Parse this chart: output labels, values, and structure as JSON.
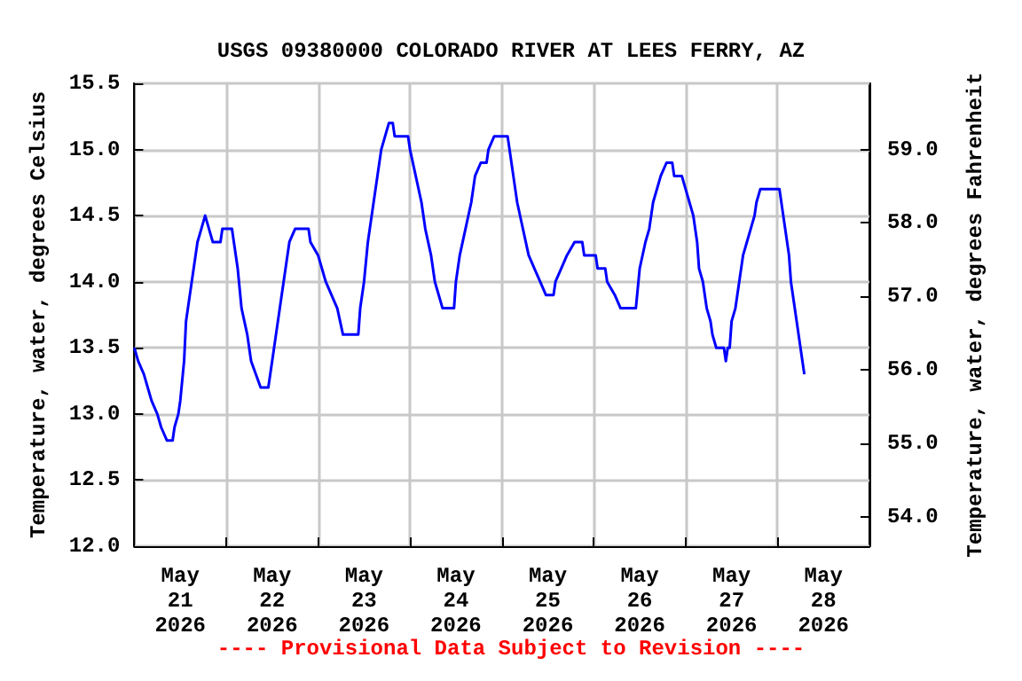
{
  "chart_data": {
    "type": "line",
    "title": "USGS 09380000 COLORADO RIVER AT LEES FERRY, AZ",
    "ylabel": "Temperature, water, degrees Celsius",
    "y2label": "Temperature, water, degrees Fahrenheit",
    "annotations": [
      "---- Provisional Data Subject to Revision ----"
    ],
    "xlim": [
      "2026-05-21T00:00",
      "2026-05-29T00:00"
    ],
    "xticks": [
      {
        "value": "2026-05-22T00:00",
        "label": null
      },
      {
        "value": "2026-05-23T00:00",
        "label": null
      },
      {
        "value": "2026-05-24T00:00",
        "label": null
      },
      {
        "value": "2026-05-25T00:00",
        "label": null
      },
      {
        "value": "2026-05-26T00:00",
        "label": null
      },
      {
        "value": "2026-05-27T00:00",
        "label": null
      },
      {
        "value": "2026-05-28T00:00",
        "label": null
      },
      {
        "value": "2026-05-21T12:00",
        "label": "May\n21\n2026"
      },
      {
        "value": "2026-05-22T12:00",
        "label": "May\n22\n2026"
      },
      {
        "value": "2026-05-23T12:00",
        "label": "May\n23\n2026"
      },
      {
        "value": "2026-05-24T12:00",
        "label": "May\n24\n2026"
      },
      {
        "value": "2026-05-25T12:00",
        "label": "May\n25\n2026"
      },
      {
        "value": "2026-05-26T12:00",
        "label": "May\n26\n2026"
      },
      {
        "value": "2026-05-27T12:00",
        "label": "May\n27\n2026"
      },
      {
        "value": "2026-05-28T12:00",
        "label": "May\n28\n2026"
      }
    ],
    "ylim": [
      12.0,
      15.5
    ],
    "yticks": [
      {
        "value": 12,
        "label": "12.0"
      },
      {
        "value": 12.5,
        "label": "12.5"
      },
      {
        "value": 13,
        "label": "13.0"
      },
      {
        "value": 13.5,
        "label": "13.5"
      },
      {
        "value": 14,
        "label": "14.0"
      },
      {
        "value": 14.5,
        "label": "14.5"
      },
      {
        "value": 15,
        "label": "15.0"
      },
      {
        "value": 15.5,
        "label": "15.5"
      }
    ],
    "y2lim": [
      53.6,
      59.9
    ],
    "y2ticks": [
      {
        "value": 54,
        "label": "54.0"
      },
      {
        "value": 55,
        "label": "55.0"
      },
      {
        "value": 56,
        "label": "56.0"
      },
      {
        "value": 57,
        "label": "57.0"
      },
      {
        "value": 58,
        "label": "58.0"
      },
      {
        "value": 59,
        "label": "59.0"
      }
    ],
    "grid": true,
    "series": [
      {
        "color": "#0000ff",
        "x": [
          "2026-05-21T00:00",
          "2026-05-21T01:00",
          "2026-05-21T02:30",
          "2026-05-21T03:30",
          "2026-05-21T04:30",
          "2026-05-21T06:00",
          "2026-05-21T07:00",
          "2026-05-21T08:30",
          "2026-05-21T10:00",
          "2026-05-21T10:30",
          "2026-05-21T11:30",
          "2026-05-21T12:00",
          "2026-05-21T13:00",
          "2026-05-21T13:30",
          "2026-05-21T14:00",
          "2026-05-21T14:30",
          "2026-05-21T15:30",
          "2026-05-21T16:30",
          "2026-05-21T17:30",
          "2026-05-21T18:30",
          "2026-05-21T19:30",
          "2026-05-21T20:30",
          "2026-05-21T22:30",
          "2026-05-21T23:00",
          "2026-05-22T01:30",
          "2026-05-22T02:00",
          "2026-05-22T03:00",
          "2026-05-22T04:00",
          "2026-05-22T05:30",
          "2026-05-22T06:30",
          "2026-05-22T09:00",
          "2026-05-22T11:00",
          "2026-05-22T12:00",
          "2026-05-22T13:00",
          "2026-05-22T14:00",
          "2026-05-22T15:30",
          "2026-05-22T16:30",
          "2026-05-22T18:00",
          "2026-05-22T21:30",
          "2026-05-22T22:00",
          "2026-05-23T00:00",
          "2026-05-23T02:00",
          "2026-05-23T03:30",
          "2026-05-23T05:00",
          "2026-05-23T06:30",
          "2026-05-23T10:30",
          "2026-05-23T11:00",
          "2026-05-23T12:00",
          "2026-05-23T13:00",
          "2026-05-23T14:30",
          "2026-05-23T15:30",
          "2026-05-23T16:30",
          "2026-05-23T17:30",
          "2026-05-23T18:30",
          "2026-05-23T19:30",
          "2026-05-23T20:00",
          "2026-05-23T23:30",
          "2026-05-24T00:00",
          "2026-05-24T01:30",
          "2026-05-24T03:00",
          "2026-05-24T04:00",
          "2026-05-24T05:30",
          "2026-05-24T06:30",
          "2026-05-24T07:30",
          "2026-05-24T08:30",
          "2026-05-24T11:30",
          "2026-05-24T12:00",
          "2026-05-24T13:00",
          "2026-05-24T14:30",
          "2026-05-24T16:00",
          "2026-05-24T17:00",
          "2026-05-24T18:30",
          "2026-05-24T20:00",
          "2026-05-24T20:30",
          "2026-05-24T22:00",
          "2026-05-25T01:30",
          "2026-05-25T02:00",
          "2026-05-25T03:00",
          "2026-05-25T04:00",
          "2026-05-25T05:30",
          "2026-05-25T07:00",
          "2026-05-25T08:30",
          "2026-05-25T10:00",
          "2026-05-25T11:30",
          "2026-05-25T13:30",
          "2026-05-25T14:00",
          "2026-05-25T15:30",
          "2026-05-25T17:00",
          "2026-05-25T19:00",
          "2026-05-25T21:00",
          "2026-05-25T21:30",
          "2026-05-26T00:30",
          "2026-05-26T01:00",
          "2026-05-26T03:00",
          "2026-05-26T03:30",
          "2026-05-26T05:30",
          "2026-05-26T07:00",
          "2026-05-26T11:00",
          "2026-05-26T12:00",
          "2026-05-26T13:30",
          "2026-05-26T14:30",
          "2026-05-26T15:30",
          "2026-05-26T17:30",
          "2026-05-26T19:00",
          "2026-05-26T20:30",
          "2026-05-26T21:00",
          "2026-05-26T23:00",
          "2026-05-27T00:00",
          "2026-05-27T01:00",
          "2026-05-27T02:00",
          "2026-05-27T03:00",
          "2026-05-27T03:30",
          "2026-05-27T04:30",
          "2026-05-27T05:30",
          "2026-05-27T06:30",
          "2026-05-27T07:00",
          "2026-05-27T08:00",
          "2026-05-27T10:00",
          "2026-05-27T10:30",
          "2026-05-27T11:00",
          "2026-05-27T11:30",
          "2026-05-27T12:00",
          "2026-05-27T13:00",
          "2026-05-27T14:00",
          "2026-05-27T15:00",
          "2026-05-27T16:00",
          "2026-05-27T17:00",
          "2026-05-27T18:00",
          "2026-05-27T18:30",
          "2026-05-27T19:30",
          "2026-05-28T00:30",
          "2026-05-28T01:00",
          "2026-05-28T02:00",
          "2026-05-28T03:00",
          "2026-05-28T03:30",
          "2026-05-28T04:30",
          "2026-05-28T05:30",
          "2026-05-28T06:30",
          "2026-05-28T07:00"
        ],
        "values": [
          13.5,
          13.4,
          13.3,
          13.2,
          13.1,
          13.0,
          12.9,
          12.8,
          12.8,
          12.9,
          13.0,
          13.1,
          13.4,
          13.7,
          13.8,
          13.9,
          14.1,
          14.3,
          14.4,
          14.5,
          14.4,
          14.3,
          14.3,
          14.4,
          14.4,
          14.3,
          14.1,
          13.8,
          13.6,
          13.4,
          13.2,
          13.2,
          13.4,
          13.6,
          13.8,
          14.1,
          14.3,
          14.4,
          14.4,
          14.3,
          14.2,
          14.0,
          13.9,
          13.8,
          13.6,
          13.6,
          13.8,
          14.0,
          14.3,
          14.6,
          14.8,
          15.0,
          15.1,
          15.2,
          15.2,
          15.1,
          15.1,
          15.0,
          14.8,
          14.6,
          14.4,
          14.2,
          14.0,
          13.9,
          13.8,
          13.8,
          14.0,
          14.2,
          14.4,
          14.6,
          14.8,
          14.9,
          14.9,
          15.0,
          15.1,
          15.1,
          15.0,
          14.8,
          14.6,
          14.4,
          14.2,
          14.1,
          14.0,
          13.9,
          13.9,
          14.0,
          14.1,
          14.2,
          14.3,
          14.3,
          14.2,
          14.2,
          14.1,
          14.1,
          14.0,
          13.9,
          13.8,
          13.8,
          14.1,
          14.3,
          14.4,
          14.6,
          14.8,
          14.9,
          14.9,
          14.8,
          14.8,
          14.7,
          14.6,
          14.5,
          14.3,
          14.1,
          14.0,
          13.8,
          13.7,
          13.6,
          13.5,
          13.5,
          13.4,
          13.5,
          13.5,
          13.7,
          13.8,
          14.0,
          14.2,
          14.3,
          14.4,
          14.5,
          14.6,
          14.7,
          14.7,
          14.6,
          14.4,
          14.2,
          14.0,
          13.8,
          13.6,
          13.4,
          13.3
        ]
      }
    ]
  }
}
